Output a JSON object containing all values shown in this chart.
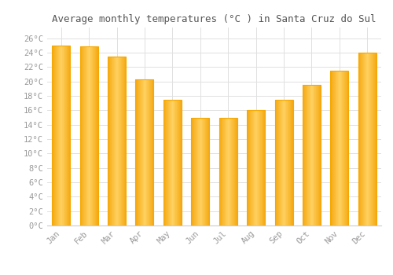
{
  "title": "Average monthly temperatures (°C ) in Santa Cruz do Sul",
  "months": [
    "Jan",
    "Feb",
    "Mar",
    "Apr",
    "May",
    "Jun",
    "Jul",
    "Aug",
    "Sep",
    "Oct",
    "Nov",
    "Dec"
  ],
  "values": [
    25.0,
    24.9,
    23.5,
    20.3,
    17.5,
    15.0,
    15.0,
    16.0,
    17.5,
    19.5,
    21.5,
    24.0
  ],
  "bar_color_center": "#FFD060",
  "bar_color_edge": "#F5A800",
  "background_color": "#FFFFFF",
  "grid_color": "#E0E0E0",
  "text_color": "#999999",
  "ytick_labels": [
    "0°C",
    "2°C",
    "4°C",
    "6°C",
    "8°C",
    "10°C",
    "12°C",
    "14°C",
    "16°C",
    "18°C",
    "20°C",
    "22°C",
    "24°C",
    "26°C"
  ],
  "ytick_values": [
    0,
    2,
    4,
    6,
    8,
    10,
    12,
    14,
    16,
    18,
    20,
    22,
    24,
    26
  ],
  "ylim": [
    0,
    27.5
  ],
  "title_fontsize": 9,
  "tick_fontsize": 7.5,
  "font_family": "monospace"
}
